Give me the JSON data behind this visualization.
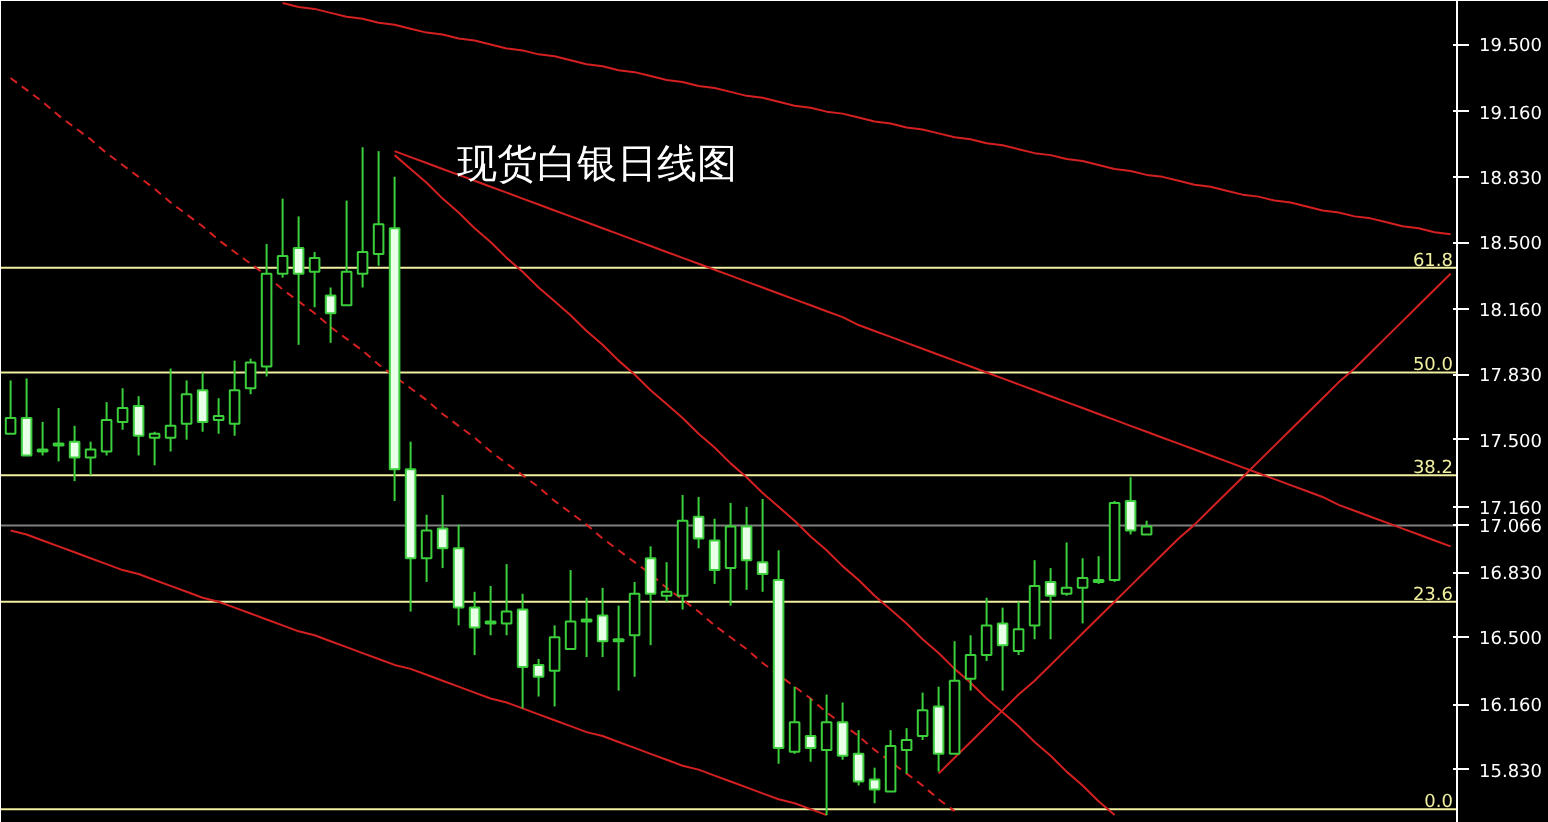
{
  "chart_data": {
    "type": "candlestick",
    "title": "现货白银日线图",
    "categories": [
      null,
      null,
      null,
      null,
      null,
      null,
      null,
      null,
      null,
      null,
      null,
      null,
      null,
      null,
      null,
      null,
      null,
      null,
      null,
      null,
      null,
      null,
      null,
      null,
      null,
      null,
      null,
      null,
      null,
      null,
      null,
      null,
      null,
      null,
      null,
      null,
      null,
      null,
      null,
      null,
      null,
      null,
      null,
      null,
      null,
      null,
      null,
      null,
      null,
      null,
      null,
      null,
      null,
      null,
      null,
      null,
      null,
      null,
      null,
      null,
      null,
      null,
      null,
      null,
      null,
      null,
      null,
      null,
      null,
      null,
      null,
      null,
      null,
      null,
      null,
      null,
      null,
      null,
      null,
      null,
      null,
      null,
      null,
      null,
      null,
      null,
      null,
      null,
      null,
      null,
      null
    ],
    "ohlc": [
      [
        17.53,
        17.8,
        17.53,
        17.61
      ],
      [
        17.61,
        17.81,
        17.42,
        17.42
      ],
      [
        17.44,
        17.59,
        17.42,
        17.45
      ],
      [
        17.47,
        17.66,
        17.39,
        17.48
      ],
      [
        17.49,
        17.57,
        17.29,
        17.41
      ],
      [
        17.41,
        17.49,
        17.32,
        17.45
      ],
      [
        17.44,
        17.69,
        17.42,
        17.6
      ],
      [
        17.59,
        17.76,
        17.55,
        17.66
      ],
      [
        17.67,
        17.72,
        17.42,
        17.52
      ],
      [
        17.51,
        17.54,
        17.37,
        17.53
      ],
      [
        17.51,
        17.86,
        17.44,
        17.57
      ],
      [
        17.58,
        17.8,
        17.5,
        17.73
      ],
      [
        17.75,
        17.84,
        17.54,
        17.59
      ],
      [
        17.6,
        17.71,
        17.53,
        17.62
      ],
      [
        17.58,
        17.9,
        17.52,
        17.75
      ],
      [
        17.76,
        17.91,
        17.73,
        17.89
      ],
      [
        17.87,
        18.49,
        17.82,
        18.34
      ],
      [
        18.34,
        18.72,
        18.32,
        18.43
      ],
      [
        18.47,
        18.63,
        17.98,
        18.34
      ],
      [
        18.35,
        18.45,
        18.17,
        18.42
      ],
      [
        18.23,
        18.27,
        17.99,
        18.14
      ],
      [
        18.18,
        18.71,
        18.18,
        18.35
      ],
      [
        18.34,
        18.98,
        18.27,
        18.45
      ],
      [
        18.44,
        18.96,
        18.38,
        18.59
      ],
      [
        18.57,
        18.83,
        17.19,
        17.35
      ],
      [
        17.35,
        17.49,
        16.63,
        16.9
      ],
      [
        16.9,
        17.12,
        16.78,
        17.04
      ],
      [
        17.05,
        17.22,
        16.85,
        16.95
      ],
      [
        16.95,
        17.07,
        16.56,
        16.65
      ],
      [
        16.65,
        16.73,
        16.41,
        16.55
      ],
      [
        16.57,
        16.76,
        16.51,
        16.58
      ],
      [
        16.57,
        16.87,
        16.51,
        16.63
      ],
      [
        16.64,
        16.72,
        16.14,
        16.35
      ],
      [
        16.36,
        16.39,
        16.2,
        16.3
      ],
      [
        16.33,
        16.56,
        16.15,
        16.5
      ],
      [
        16.44,
        16.84,
        16.44,
        16.58
      ],
      [
        16.58,
        16.7,
        16.4,
        16.59
      ],
      [
        16.61,
        16.75,
        16.4,
        16.48
      ],
      [
        16.48,
        16.66,
        16.23,
        16.49
      ],
      [
        16.51,
        16.78,
        16.3,
        16.72
      ],
      [
        16.9,
        16.96,
        16.46,
        16.72
      ],
      [
        16.71,
        16.88,
        16.68,
        16.73
      ],
      [
        16.71,
        17.22,
        16.64,
        17.09
      ],
      [
        17.11,
        17.21,
        16.95,
        17.0
      ],
      [
        16.99,
        17.1,
        16.77,
        16.84
      ],
      [
        16.85,
        17.18,
        16.66,
        17.06
      ],
      [
        17.06,
        17.16,
        16.74,
        16.89
      ],
      [
        16.88,
        17.2,
        16.73,
        16.82
      ],
      [
        16.79,
        16.94,
        15.86,
        15.94
      ],
      [
        15.92,
        16.25,
        15.91,
        16.07
      ],
      [
        16.0,
        16.19,
        15.87,
        15.94
      ],
      [
        15.93,
        16.21,
        15.6,
        16.07
      ],
      [
        16.07,
        16.17,
        15.88,
        15.9
      ],
      [
        15.91,
        16.03,
        15.75,
        15.77
      ],
      [
        15.78,
        15.84,
        15.66,
        15.73
      ],
      [
        15.72,
        16.03,
        15.72,
        15.95
      ],
      [
        15.93,
        16.04,
        15.81,
        15.98
      ],
      [
        16.0,
        16.22,
        15.98,
        16.13
      ],
      [
        16.15,
        16.25,
        15.82,
        15.91
      ],
      [
        15.91,
        16.48,
        15.91,
        16.28
      ],
      [
        16.29,
        16.51,
        16.23,
        16.41
      ],
      [
        16.41,
        16.7,
        16.38,
        16.56
      ],
      [
        16.57,
        16.65,
        16.23,
        16.46
      ],
      [
        16.43,
        16.68,
        16.41,
        16.54
      ],
      [
        16.56,
        16.89,
        16.49,
        16.76
      ],
      [
        16.78,
        16.85,
        16.49,
        16.71
      ],
      [
        16.72,
        16.98,
        16.71,
        16.75
      ],
      [
        16.75,
        16.9,
        16.57,
        16.8
      ],
      [
        16.78,
        16.91,
        16.77,
        16.79
      ],
      [
        16.79,
        17.19,
        16.78,
        17.18
      ],
      [
        17.19,
        17.31,
        17.02,
        17.04
      ],
      [
        17.02,
        17.09,
        17.02,
        17.06
      ],
      null,
      null,
      null,
      null,
      null,
      null,
      null,
      null,
      null,
      null,
      null,
      null,
      null,
      null,
      null,
      null,
      null,
      null,
      null
    ],
    "series": [
      {
        "type": "line",
        "color": "#d42020",
        "values": [
          null,
          null,
          null,
          null,
          null,
          null,
          null,
          null,
          null,
          null,
          null,
          null,
          null,
          null,
          null,
          null,
          null,
          19.71,
          19.69,
          19.68,
          19.66,
          19.64,
          19.63,
          19.61,
          19.6,
          19.58,
          19.56,
          19.55,
          19.53,
          19.52,
          19.5,
          19.48,
          19.47,
          19.45,
          19.44,
          19.42,
          19.4,
          19.39,
          19.37,
          19.36,
          19.34,
          19.32,
          19.31,
          19.29,
          19.28,
          19.26,
          19.24,
          19.23,
          19.21,
          19.19,
          19.18,
          19.16,
          19.15,
          19.13,
          19.11,
          19.1,
          19.08,
          19.07,
          19.05,
          19.03,
          19.02,
          19.0,
          18.99,
          18.97,
          18.95,
          18.94,
          18.92,
          18.91,
          18.89,
          18.87,
          18.86,
          18.84,
          18.83,
          18.81,
          18.79,
          18.78,
          18.76,
          18.74,
          18.73,
          18.71,
          18.7,
          18.68,
          18.66,
          18.65,
          18.63,
          18.62,
          18.6,
          18.58,
          18.57,
          18.55,
          18.54
        ]
      },
      {
        "type": "line",
        "color": "#d42020",
        "values": [
          null,
          null,
          null,
          null,
          null,
          null,
          null,
          null,
          null,
          null,
          null,
          null,
          null,
          null,
          null,
          null,
          null,
          null,
          null,
          null,
          null,
          null,
          null,
          null,
          18.96,
          18.93,
          18.9,
          18.87,
          18.84,
          18.81,
          18.78,
          18.75,
          18.72,
          18.69,
          18.66,
          18.63,
          18.6,
          18.57,
          18.54,
          18.51,
          18.48,
          18.45,
          18.42,
          18.39,
          18.36,
          18.33,
          18.3,
          18.27,
          18.24,
          18.21,
          18.18,
          18.15,
          18.12,
          18.08,
          18.05,
          18.02,
          17.99,
          17.96,
          17.93,
          17.9,
          17.87,
          17.84,
          17.81,
          17.78,
          17.75,
          17.72,
          17.69,
          17.66,
          17.63,
          17.6,
          17.57,
          17.54,
          17.51,
          17.48,
          17.45,
          17.42,
          17.39,
          17.36,
          17.33,
          17.3,
          17.27,
          17.24,
          17.21,
          17.17,
          17.14,
          17.11,
          17.08,
          17.05,
          17.02,
          16.99,
          16.96
        ]
      },
      {
        "type": "line",
        "color": "#d42020",
        "values": [
          null,
          null,
          null,
          null,
          null,
          null,
          null,
          null,
          null,
          null,
          null,
          null,
          null,
          null,
          null,
          null,
          null,
          null,
          null,
          null,
          null,
          null,
          null,
          null,
          18.94,
          18.87,
          18.8,
          18.72,
          18.65,
          18.57,
          18.5,
          18.42,
          18.35,
          18.27,
          18.2,
          18.13,
          18.05,
          17.98,
          17.9,
          17.83,
          17.75,
          17.68,
          17.61,
          17.53,
          17.46,
          17.38,
          17.31,
          17.23,
          17.16,
          17.09,
          17.01,
          16.94,
          16.86,
          16.79,
          16.71,
          16.64,
          16.57,
          16.49,
          16.42,
          16.34,
          16.27,
          16.19,
          16.12,
          16.05,
          15.97,
          15.9,
          15.82,
          15.75,
          15.67,
          15.6,
          null,
          null,
          null,
          null,
          null,
          null,
          null,
          null,
          null,
          null,
          null,
          null,
          null,
          null,
          null,
          null,
          null,
          null,
          null,
          null,
          null
        ]
      },
      {
        "type": "line",
        "color": "#d42020",
        "line_style": "dashed",
        "values": [
          19.33,
          19.27,
          19.21,
          19.14,
          19.08,
          19.02,
          18.95,
          18.89,
          18.83,
          18.77,
          18.7,
          18.64,
          18.58,
          18.51,
          18.45,
          18.39,
          18.33,
          18.26,
          18.2,
          18.14,
          18.07,
          18.01,
          17.95,
          17.88,
          17.82,
          17.76,
          17.7,
          17.63,
          17.57,
          17.51,
          17.44,
          17.38,
          17.32,
          17.26,
          17.19,
          17.13,
          17.07,
          17.0,
          16.94,
          16.88,
          16.82,
          16.75,
          16.69,
          16.63,
          16.56,
          16.5,
          16.44,
          16.37,
          16.31,
          16.25,
          16.19,
          16.12,
          16.06,
          16.0,
          15.93,
          15.87,
          15.81,
          15.75,
          15.68,
          15.62,
          null,
          null,
          null,
          null,
          null,
          null,
          null,
          null,
          null,
          null,
          null,
          null,
          null,
          null,
          null,
          null,
          null,
          null,
          null,
          null,
          null,
          null,
          null,
          null,
          null,
          null,
          null,
          null,
          null,
          null,
          null
        ]
      },
      {
        "type": "line",
        "color": "#d42020",
        "values": [
          17.04,
          17.02,
          16.99,
          16.96,
          16.93,
          16.9,
          16.87,
          16.84,
          16.82,
          16.79,
          16.76,
          16.73,
          16.7,
          16.68,
          16.65,
          16.62,
          16.59,
          16.56,
          16.53,
          16.51,
          16.48,
          16.45,
          16.42,
          16.39,
          16.36,
          16.34,
          16.31,
          16.28,
          16.25,
          16.22,
          16.19,
          16.17,
          16.14,
          16.11,
          16.08,
          16.05,
          16.02,
          16.0,
          15.97,
          15.94,
          15.91,
          15.88,
          15.85,
          15.83,
          15.8,
          15.77,
          15.74,
          15.71,
          15.68,
          15.66,
          15.63,
          15.6,
          null,
          null,
          null,
          null,
          null,
          null,
          null,
          null,
          null,
          null,
          null,
          null,
          null,
          null,
          null,
          null,
          null,
          null,
          null,
          null,
          null,
          null,
          null,
          null,
          null,
          null,
          null,
          null,
          null,
          null,
          null,
          null,
          null,
          null,
          null,
          null,
          null,
          null,
          null
        ]
      },
      {
        "type": "line",
        "color": "#d42020",
        "values": [
          null,
          null,
          null,
          null,
          null,
          null,
          null,
          null,
          null,
          null,
          null,
          null,
          null,
          null,
          null,
          null,
          null,
          null,
          null,
          null,
          null,
          null,
          null,
          null,
          null,
          null,
          null,
          null,
          null,
          null,
          null,
          null,
          null,
          null,
          null,
          null,
          null,
          null,
          null,
          null,
          null,
          null,
          null,
          null,
          null,
          null,
          null,
          null,
          null,
          null,
          null,
          null,
          null,
          null,
          null,
          null,
          null,
          null,
          15.81,
          15.89,
          15.97,
          16.05,
          16.13,
          16.21,
          16.28,
          16.36,
          16.44,
          16.52,
          16.6,
          16.68,
          16.76,
          16.84,
          16.92,
          17.0,
          17.07,
          17.15,
          17.23,
          17.31,
          17.39,
          17.47,
          17.55,
          17.63,
          17.71,
          17.79,
          17.86,
          17.94,
          18.02,
          18.1,
          18.18,
          18.26,
          18.34
        ]
      }
    ],
    "ref_lines": [
      {
        "axis": "y",
        "value": 18.37,
        "color": "#f0f0a0"
      },
      {
        "axis": "y",
        "value": 17.84,
        "color": "#f0f0a0"
      },
      {
        "axis": "y",
        "value": 17.32,
        "color": "#f0f0a0"
      },
      {
        "axis": "y",
        "value": 16.68,
        "color": "#f0f0a0"
      },
      {
        "axis": "y",
        "value": 15.63,
        "color": "#f0f0a0"
      },
      {
        "axis": "y",
        "value": 17.066,
        "color": "#808080"
      }
    ],
    "ylim": [
      15.56,
      19.72
    ],
    "yticks": [
      {
        "value": 19.5,
        "label": "19.500"
      },
      {
        "value": 19.16,
        "label": "19.160"
      },
      {
        "value": 18.83,
        "label": "18.830"
      },
      {
        "value": 18.5,
        "label": "18.500"
      },
      {
        "value": 18.16,
        "label": "18.160"
      },
      {
        "value": 17.83,
        "label": "17.830"
      },
      {
        "value": 17.5,
        "label": "17.500"
      },
      {
        "value": 17.16,
        "label": "17.160"
      },
      {
        "value": 17.066,
        "label": "17.066"
      },
      {
        "value": 16.83,
        "label": "16.830"
      },
      {
        "value": 16.5,
        "label": "16.500"
      },
      {
        "value": 16.16,
        "label": "16.160"
      },
      {
        "value": 15.83,
        "label": "15.830"
      }
    ],
    "annotations": [
      "61.8",
      "50.0",
      "38.2",
      "23.6",
      "0.0"
    ],
    "tick_labels": "y",
    "grid": false
  }
}
